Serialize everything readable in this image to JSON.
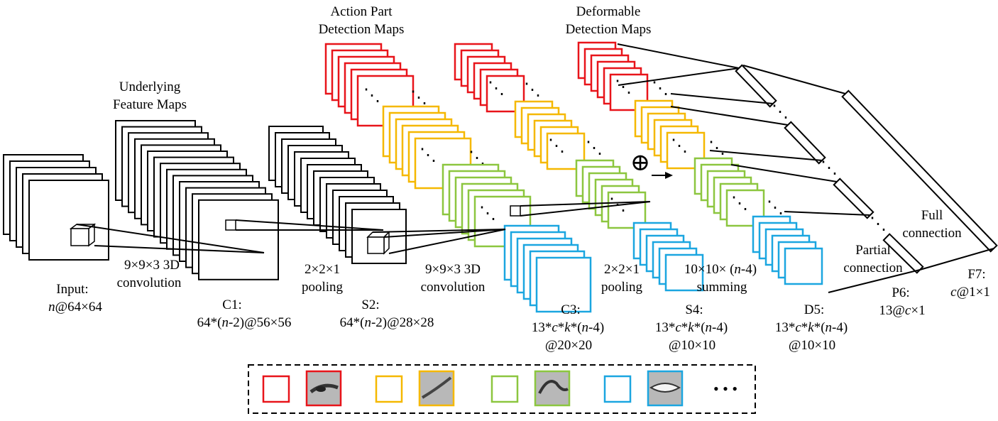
{
  "colors": {
    "stroke": "#000000",
    "red": "#e8141a",
    "orange": "#f5b800",
    "green": "#8cc63f",
    "blue": "#1ba6e0",
    "face_fill": "#9a9a9a"
  },
  "headings": {
    "underlying": [
      "Underlying",
      "Feature Maps"
    ],
    "action_part": [
      "Action Part",
      "Detection Maps"
    ],
    "deformable": [
      "Deformable",
      "Detection Maps"
    ]
  },
  "layers": {
    "input": {
      "name": "Input:",
      "dims": [
        "n",
        "@64×64"
      ]
    },
    "c1": {
      "name": "C1:",
      "dims": [
        "64*(",
        "n",
        "-2)@56×56"
      ]
    },
    "s2": {
      "name": "S2:",
      "dims": [
        "64*(",
        "n",
        "-2)@28×28"
      ]
    },
    "c3": {
      "name": "C3:",
      "dims": [
        "13*",
        "c",
        "*",
        "k",
        "*(",
        "n",
        "-4)"
      ],
      "size": "@20×20"
    },
    "s4": {
      "name": "S4:",
      "dims": [
        "13*",
        "c",
        "*",
        "k",
        "*(",
        "n",
        "-4)"
      ],
      "size": "@10×10"
    },
    "d5": {
      "name": "D5:",
      "dims": [
        "13*",
        "c",
        "*",
        "k",
        "*(",
        "n",
        "-4)"
      ],
      "size": "@10×10"
    },
    "p6": {
      "name": "P6:",
      "dims": [
        "13@",
        "c",
        "×1"
      ]
    },
    "f7": {
      "name": "F7:",
      "dims": [
        "c",
        "@1×1"
      ]
    }
  },
  "operations": {
    "conv1": [
      "9×9×3 3D",
      "convolution"
    ],
    "pool1": [
      "2×2×1",
      "pooling"
    ],
    "conv2": [
      "9×9×3 3D",
      "convolution"
    ],
    "pool2": [
      "2×2×1",
      "pooling"
    ],
    "sum": [
      "10×10× (",
      "n",
      "-4)",
      "summing"
    ],
    "partial": [
      "Partial",
      "connection"
    ],
    "full": [
      "Full",
      "connection"
    ]
  },
  "symbols": {
    "dots": "⋱",
    "oplus": "⊕",
    "ellipsis": "• • •"
  },
  "legend": {
    "items": [
      {
        "color_key": "red",
        "patch": "eye-patch"
      },
      {
        "color_key": "orange",
        "patch": "brow-patch"
      },
      {
        "color_key": "green",
        "patch": "mouth-corner-patch"
      },
      {
        "color_key": "blue",
        "patch": "teeth-patch"
      }
    ]
  }
}
